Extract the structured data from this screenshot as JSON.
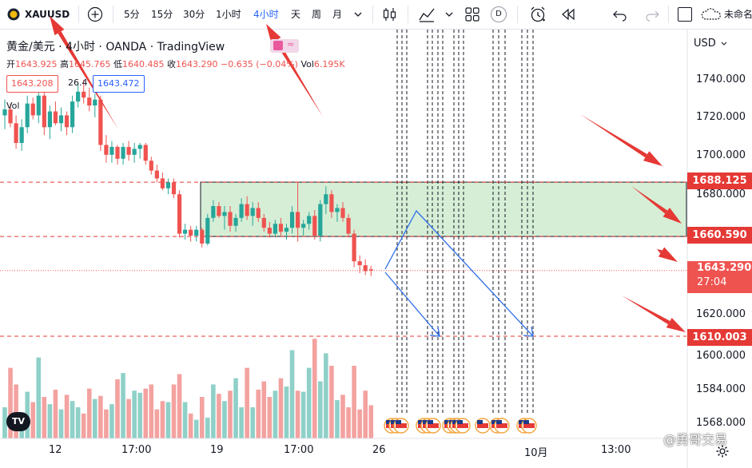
{
  "toolbar": {
    "symbol": "XAUUSD",
    "intervals": [
      "5分",
      "15分",
      "30分",
      "1小时",
      "4小时",
      "天",
      "周",
      "月"
    ],
    "active_interval": "4小时",
    "d_badge": "D",
    "unnamed_label": "未命名"
  },
  "legend": {
    "title": "黄金/美元 · 4小时 · OANDA · TradingView",
    "open_label": "开",
    "open": "1643.925",
    "high_label": "高",
    "high": "1645.765",
    "low_label": "低",
    "low": "1640.485",
    "close_label": "收",
    "close": "1643.290",
    "change": "−0.635 (−0.04%)",
    "vol_label": "Vol",
    "vol": "6.195K",
    "bid": "1643.208",
    "spread": "26.4",
    "ask": "1643.472",
    "volume_pane_label": "Vol"
  },
  "price_axis": {
    "currency": "USD",
    "ticks": [
      "1740.000",
      "1720.000",
      "1700.000",
      "1680.000",
      "1620.000",
      "1600.000",
      "1584.000",
      "1568.000"
    ],
    "tags": {
      "upper": "1688.125",
      "middle": "1660.590",
      "last": "1643.290",
      "countdown": "27:04",
      "lower": "1610.003"
    }
  },
  "time_axis": {
    "labels": [
      "12",
      "17:00",
      "19",
      "17:00",
      "26",
      "10月",
      "13:00"
    ]
  },
  "watermark": "@勇哥交易",
  "logo": "TV",
  "colors": {
    "up": "#26a69a",
    "down": "#ef5350",
    "accent": "#2962ff",
    "zone": "#d6eed6",
    "annotation_red": "#e53935",
    "projection_blue": "#2f6fe8"
  },
  "chart_data": {
    "type": "candlestick",
    "symbol": "XAUUSD",
    "timeframe": "4小时",
    "ylim": [
      1560,
      1750
    ],
    "y_ticks": [
      1740,
      1720,
      1700,
      1680,
      1620,
      1600,
      1584,
      1568
    ],
    "levels": {
      "upper": 1688.125,
      "middle": 1660.59,
      "last": 1643.29,
      "lower": 1610.003
    },
    "zone": {
      "top": 1688.125,
      "bottom": 1660.59
    },
    "candles": [
      [
        1722,
        1730,
        1715,
        1725
      ],
      [
        1725,
        1728,
        1716,
        1718
      ],
      [
        1718,
        1722,
        1705,
        1708
      ],
      [
        1708,
        1720,
        1704,
        1716
      ],
      [
        1716,
        1732,
        1713,
        1728
      ],
      [
        1728,
        1731,
        1720,
        1722
      ],
      [
        1722,
        1735,
        1718,
        1732
      ],
      [
        1732,
        1734,
        1712,
        1716
      ],
      [
        1716,
        1727,
        1710,
        1724
      ],
      [
        1724,
        1729,
        1717,
        1718
      ],
      [
        1718,
        1726,
        1714,
        1722
      ],
      [
        1722,
        1724,
        1712,
        1716
      ],
      [
        1716,
        1732,
        1713,
        1729
      ],
      [
        1729,
        1738,
        1726,
        1734
      ],
      [
        1734,
        1740,
        1728,
        1731
      ],
      [
        1731,
        1736,
        1724,
        1727
      ],
      [
        1727,
        1733,
        1721,
        1730
      ],
      [
        1730,
        1732,
        1704,
        1707
      ],
      [
        1707,
        1712,
        1698,
        1702
      ],
      [
        1702,
        1709,
        1698,
        1706
      ],
      [
        1706,
        1707,
        1697,
        1700
      ],
      [
        1700,
        1708,
        1697,
        1706
      ],
      [
        1706,
        1709,
        1699,
        1702
      ],
      [
        1702,
        1708,
        1698,
        1705
      ],
      [
        1705,
        1708,
        1700,
        1707
      ],
      [
        1707,
        1708,
        1697,
        1699
      ],
      [
        1699,
        1701,
        1692,
        1694
      ],
      [
        1694,
        1697,
        1688,
        1690
      ],
      [
        1690,
        1693,
        1684,
        1685
      ],
      [
        1685,
        1690,
        1682,
        1688
      ],
      [
        1688,
        1690,
        1680,
        1682
      ],
      [
        1682,
        1684,
        1660,
        1662
      ],
      [
        1662,
        1667,
        1659,
        1664
      ],
      [
        1664,
        1666,
        1658,
        1661
      ],
      [
        1661,
        1666,
        1658,
        1664
      ],
      [
        1664,
        1665,
        1655,
        1657
      ],
      [
        1657,
        1672,
        1656,
        1670
      ],
      [
        1670,
        1679,
        1668,
        1676
      ],
      [
        1676,
        1678,
        1670,
        1671
      ],
      [
        1671,
        1676,
        1664,
        1673
      ],
      [
        1673,
        1676,
        1663,
        1666
      ],
      [
        1666,
        1672,
        1663,
        1670
      ],
      [
        1670,
        1680,
        1668,
        1677
      ],
      [
        1677,
        1681,
        1669,
        1671
      ],
      [
        1671,
        1678,
        1666,
        1675
      ],
      [
        1675,
        1678,
        1668,
        1670
      ],
      [
        1670,
        1672,
        1663,
        1665
      ],
      [
        1665,
        1668,
        1660,
        1662
      ],
      [
        1662,
        1669,
        1660,
        1667
      ],
      [
        1667,
        1670,
        1661,
        1663
      ],
      [
        1663,
        1667,
        1659,
        1665
      ],
      [
        1665,
        1676,
        1662,
        1673
      ],
      [
        1673,
        1688,
        1658,
        1665
      ],
      [
        1665,
        1669,
        1661,
        1667
      ],
      [
        1667,
        1673,
        1664,
        1671
      ],
      [
        1671,
        1674,
        1659,
        1661
      ],
      [
        1661,
        1679,
        1658,
        1677
      ],
      [
        1677,
        1686,
        1672,
        1682
      ],
      [
        1682,
        1684,
        1670,
        1673
      ],
      [
        1673,
        1677,
        1668,
        1675
      ],
      [
        1675,
        1678,
        1668,
        1670
      ],
      [
        1670,
        1672,
        1660,
        1662
      ],
      [
        1662,
        1664,
        1645,
        1648
      ],
      [
        1648,
        1651,
        1642,
        1646
      ],
      [
        1646,
        1649,
        1641,
        1643
      ],
      [
        1643.925,
        1645.765,
        1640.485,
        1643.29
      ]
    ],
    "volume_ylim": [
      0,
      100
    ],
    "volumes": [
      30,
      68,
      52,
      22,
      45,
      35,
      78,
      40,
      33,
      47,
      28,
      42,
      36,
      30,
      24,
      48,
      38,
      41,
      28,
      33,
      57,
      63,
      38,
      46,
      44,
      48,
      52,
      28,
      36,
      35,
      52,
      62,
      35,
      24,
      18,
      40,
      20,
      52,
      43,
      36,
      46,
      58,
      30,
      68,
      30,
      47,
      55,
      40,
      46,
      58,
      50,
      85,
      46,
      45,
      68,
      96,
      55,
      82,
      70,
      37,
      42,
      30,
      70,
      28,
      46,
      32
    ]
  }
}
